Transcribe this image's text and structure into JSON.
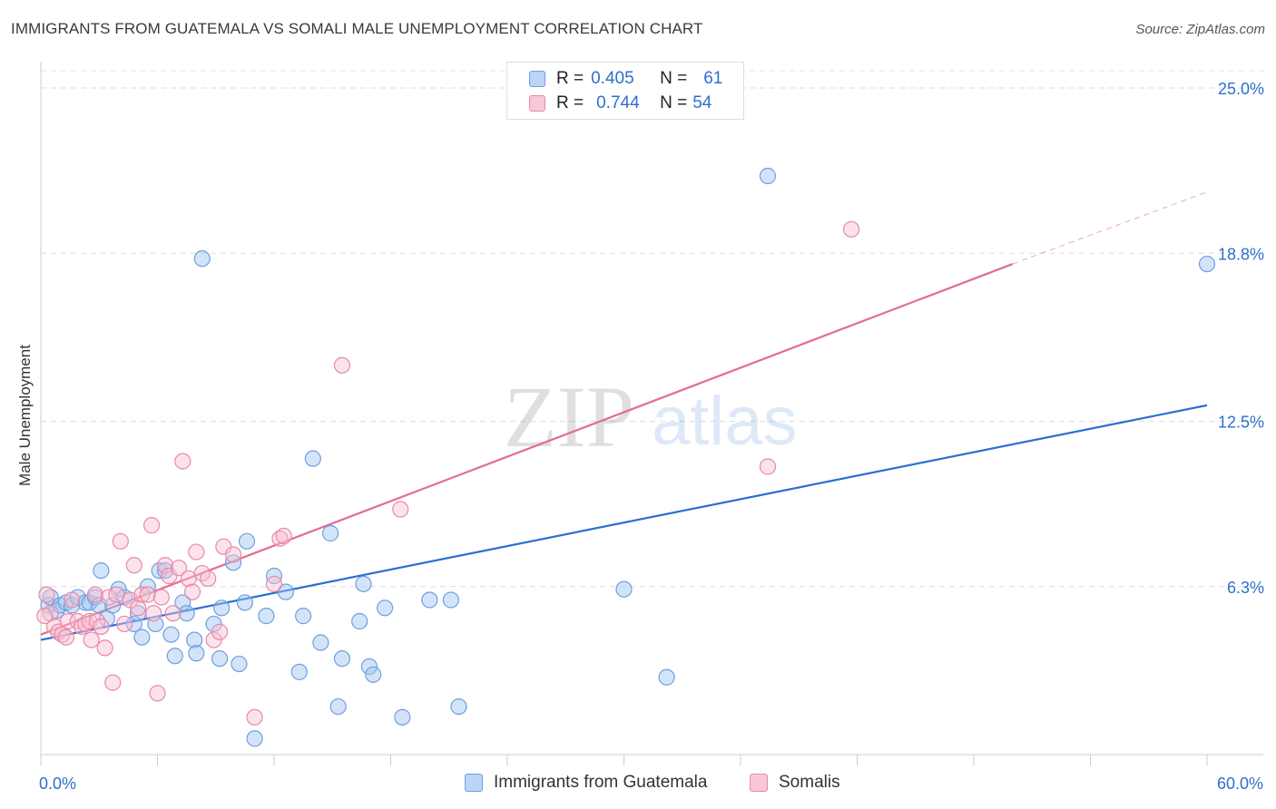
{
  "header": {
    "title": "IMMIGRANTS FROM GUATEMALA VS SOMALI MALE UNEMPLOYMENT CORRELATION CHART",
    "source": "Source: ZipAtlas.com"
  },
  "watermark": {
    "zip": "ZIP",
    "atlas": "atlas"
  },
  "legend_stats": [
    {
      "r_label": "R =",
      "r_value": "0.405",
      "n_label": "N =",
      "n_value": "61",
      "color": "#6f9ee0"
    },
    {
      "r_label": "R =",
      "r_value": "0.744",
      "n_label": "N =",
      "n_value": "54",
      "color": "#e889a8"
    }
  ],
  "bottom_legend": [
    {
      "label": "Immigrants from Guatemala",
      "color": "#6f9ee0"
    },
    {
      "label": "Somalis",
      "color": "#e889a8"
    }
  ],
  "chart_data": {
    "type": "scatter",
    "title": "IMMIGRANTS FROM GUATEMALA VS SOMALI MALE UNEMPLOYMENT CORRELATION CHART",
    "xlabel": "",
    "ylabel": "Male Unemployment",
    "xlim": [
      0,
      60
    ],
    "ylim": [
      0,
      25
    ],
    "x_tick_labels": [
      {
        "value": 0,
        "label": "0.0%"
      },
      {
        "value": 60,
        "label": "60.0%"
      }
    ],
    "y_tick_labels": [
      {
        "value": 6.3,
        "label": "6.3%"
      },
      {
        "value": 12.5,
        "label": "12.5%"
      },
      {
        "value": 18.8,
        "label": "18.8%"
      },
      {
        "value": 25.0,
        "label": "25.0%"
      }
    ],
    "series": [
      {
        "name": "Immigrants from Guatemala",
        "color": "#6f9ee0",
        "trend": {
          "x": [
            0,
            60
          ],
          "y": [
            4.3,
            13.1
          ]
        },
        "points": [
          [
            0.4,
            5.6
          ],
          [
            0.5,
            5.9
          ],
          [
            0.8,
            5.4
          ],
          [
            1.0,
            5.6
          ],
          [
            1.3,
            5.7
          ],
          [
            1.6,
            5.6
          ],
          [
            1.9,
            5.9
          ],
          [
            2.3,
            5.7
          ],
          [
            2.5,
            5.7
          ],
          [
            2.8,
            5.9
          ],
          [
            3.0,
            5.6
          ],
          [
            3.1,
            6.9
          ],
          [
            3.4,
            5.1
          ],
          [
            3.7,
            5.6
          ],
          [
            4.0,
            6.2
          ],
          [
            4.3,
            5.9
          ],
          [
            4.8,
            4.9
          ],
          [
            5.0,
            5.3
          ],
          [
            5.2,
            4.4
          ],
          [
            5.5,
            6.3
          ],
          [
            5.9,
            4.9
          ],
          [
            6.1,
            6.9
          ],
          [
            6.4,
            6.9
          ],
          [
            6.7,
            4.5
          ],
          [
            6.9,
            3.7
          ],
          [
            7.3,
            5.7
          ],
          [
            7.5,
            5.3
          ],
          [
            7.9,
            4.3
          ],
          [
            8.0,
            3.8
          ],
          [
            8.3,
            18.6
          ],
          [
            8.9,
            4.9
          ],
          [
            9.2,
            3.6
          ],
          [
            9.3,
            5.5
          ],
          [
            9.9,
            7.2
          ],
          [
            10.2,
            3.4
          ],
          [
            10.5,
            5.7
          ],
          [
            10.6,
            8.0
          ],
          [
            11.0,
            0.6
          ],
          [
            11.6,
            5.2
          ],
          [
            12.0,
            6.7
          ],
          [
            12.6,
            6.1
          ],
          [
            13.3,
            3.1
          ],
          [
            13.5,
            5.2
          ],
          [
            14.0,
            11.1
          ],
          [
            14.4,
            4.2
          ],
          [
            14.9,
            8.3
          ],
          [
            15.3,
            1.8
          ],
          [
            15.5,
            3.6
          ],
          [
            16.4,
            5.0
          ],
          [
            16.6,
            6.4
          ],
          [
            16.9,
            3.3
          ],
          [
            17.1,
            3.0
          ],
          [
            17.7,
            5.5
          ],
          [
            18.6,
            1.4
          ],
          [
            20.0,
            5.8
          ],
          [
            21.1,
            5.8
          ],
          [
            21.5,
            1.8
          ],
          [
            30.0,
            6.2
          ],
          [
            32.2,
            2.9
          ],
          [
            37.4,
            21.7
          ],
          [
            60.0,
            18.4
          ]
        ]
      },
      {
        "name": "Somalis",
        "color": "#e889a8",
        "trend": {
          "x": [
            0,
            50
          ],
          "y": [
            4.5,
            18.4
          ]
        },
        "trend_dashed": {
          "x": [
            50,
            60
          ],
          "y": [
            18.4,
            21.1
          ]
        },
        "points": [
          [
            0.3,
            6.0
          ],
          [
            0.5,
            5.3
          ],
          [
            0.7,
            4.8
          ],
          [
            0.9,
            4.6
          ],
          [
            1.1,
            4.5
          ],
          [
            1.3,
            4.4
          ],
          [
            1.4,
            5.0
          ],
          [
            1.6,
            5.8
          ],
          [
            1.9,
            5.0
          ],
          [
            2.1,
            4.8
          ],
          [
            2.3,
            4.9
          ],
          [
            2.5,
            5.0
          ],
          [
            2.6,
            4.3
          ],
          [
            2.8,
            6.0
          ],
          [
            2.9,
            5.0
          ],
          [
            3.1,
            4.8
          ],
          [
            3.3,
            4.0
          ],
          [
            3.5,
            5.9
          ],
          [
            3.7,
            2.7
          ],
          [
            3.9,
            6.0
          ],
          [
            4.1,
            8.0
          ],
          [
            4.3,
            4.9
          ],
          [
            4.6,
            5.8
          ],
          [
            4.8,
            7.1
          ],
          [
            5.0,
            5.5
          ],
          [
            5.2,
            6.0
          ],
          [
            5.5,
            6.0
          ],
          [
            5.7,
            8.6
          ],
          [
            5.8,
            5.3
          ],
          [
            6.0,
            2.3
          ],
          [
            6.2,
            5.9
          ],
          [
            6.4,
            7.1
          ],
          [
            6.6,
            6.7
          ],
          [
            6.8,
            5.3
          ],
          [
            7.1,
            7.0
          ],
          [
            7.3,
            11.0
          ],
          [
            7.6,
            6.6
          ],
          [
            7.8,
            6.1
          ],
          [
            8.0,
            7.6
          ],
          [
            8.3,
            6.8
          ],
          [
            8.6,
            6.6
          ],
          [
            8.9,
            4.3
          ],
          [
            9.2,
            4.6
          ],
          [
            9.4,
            7.8
          ],
          [
            9.9,
            7.5
          ],
          [
            11.0,
            1.4
          ],
          [
            12.0,
            6.4
          ],
          [
            12.3,
            8.1
          ],
          [
            12.5,
            8.2
          ],
          [
            15.5,
            14.6
          ],
          [
            18.5,
            9.2
          ],
          [
            37.4,
            10.8
          ],
          [
            41.7,
            19.7
          ],
          [
            0.2,
            5.2
          ]
        ]
      }
    ]
  }
}
